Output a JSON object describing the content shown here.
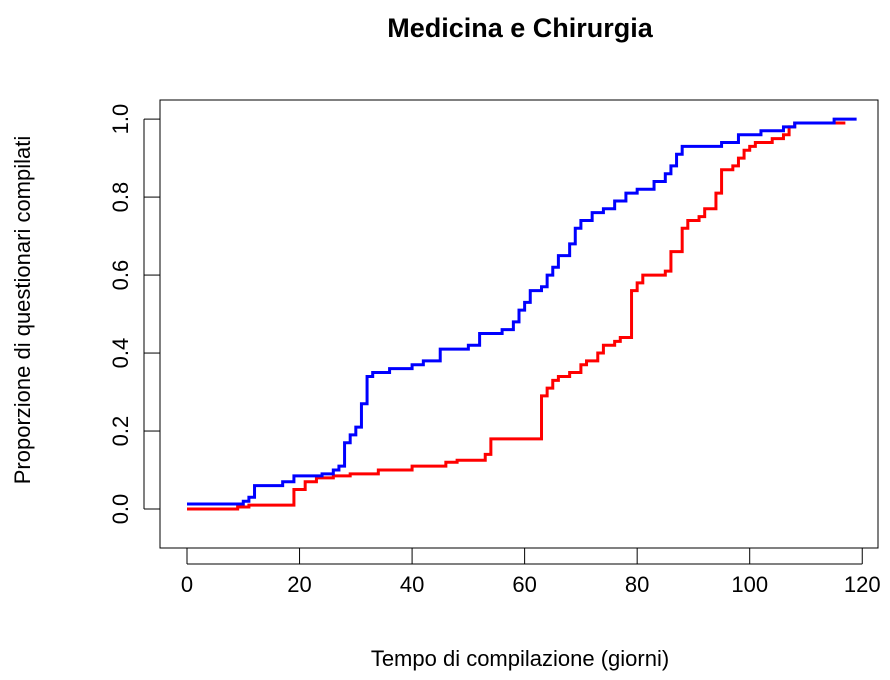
{
  "chart_data": {
    "type": "step",
    "title": "Medicina e Chirurgia",
    "x_label": "Tempo di compilazione (giorni)",
    "y_label": "Proporzione di questionari compilati",
    "xlim": [
      -4.8,
      122.8
    ],
    "ylim": [
      -0.1,
      1.049
    ],
    "xticks": [
      0,
      20,
      40,
      60,
      80,
      100,
      120
    ],
    "yticks": [
      {
        "value": 0,
        "label": "0.0"
      },
      {
        "value": 0.2,
        "label": "0.2"
      },
      {
        "value": 0.4,
        "label": "0.4"
      },
      {
        "value": 0.6,
        "label": "0.6"
      },
      {
        "value": 0.8,
        "label": "0.8"
      },
      {
        "value": 1,
        "label": "1.0"
      }
    ],
    "series": [
      {
        "color": "#0000ff",
        "x": [
          0,
          10,
          11,
          12,
          17,
          19,
          24,
          26,
          27,
          28,
          29,
          30,
          31,
          32,
          33,
          36,
          40,
          42,
          45,
          50,
          52,
          56,
          58,
          59,
          60,
          61,
          63,
          64,
          65,
          66,
          68,
          69,
          70,
          72,
          74,
          76,
          78,
          80,
          83,
          85,
          86,
          87,
          88,
          95,
          98,
          102,
          106,
          108,
          115,
          119
        ],
        "values": [
          0.013,
          0.02,
          0.03,
          0.06,
          0.07,
          0.085,
          0.09,
          0.1,
          0.11,
          0.17,
          0.19,
          0.21,
          0.27,
          0.34,
          0.35,
          0.36,
          0.37,
          0.38,
          0.41,
          0.42,
          0.45,
          0.46,
          0.48,
          0.51,
          0.53,
          0.56,
          0.57,
          0.6,
          0.62,
          0.65,
          0.68,
          0.72,
          0.74,
          0.76,
          0.77,
          0.79,
          0.81,
          0.82,
          0.84,
          0.86,
          0.88,
          0.91,
          0.93,
          0.94,
          0.96,
          0.97,
          0.98,
          0.99,
          1.0,
          1.0
        ]
      },
      {
        "color": "#ff0000",
        "x": [
          0,
          9,
          11,
          19,
          21,
          23,
          26,
          29,
          34,
          40,
          46,
          48,
          53,
          54,
          63,
          64,
          65,
          66,
          68,
          70,
          71,
          73,
          74,
          76,
          77,
          79,
          80,
          81,
          85,
          86,
          88,
          89,
          91,
          92,
          94,
          95,
          97,
          98,
          99,
          100,
          101,
          104,
          106,
          107,
          108,
          110,
          117
        ],
        "values": [
          0.0,
          0.005,
          0.01,
          0.05,
          0.07,
          0.08,
          0.085,
          0.09,
          0.1,
          0.11,
          0.12,
          0.125,
          0.14,
          0.18,
          0.29,
          0.31,
          0.33,
          0.34,
          0.35,
          0.37,
          0.38,
          0.4,
          0.42,
          0.43,
          0.44,
          0.56,
          0.58,
          0.6,
          0.61,
          0.66,
          0.72,
          0.74,
          0.75,
          0.77,
          0.81,
          0.87,
          0.88,
          0.9,
          0.92,
          0.93,
          0.94,
          0.95,
          0.96,
          0.98,
          0.99,
          0.99,
          0.99
        ]
      }
    ]
  }
}
